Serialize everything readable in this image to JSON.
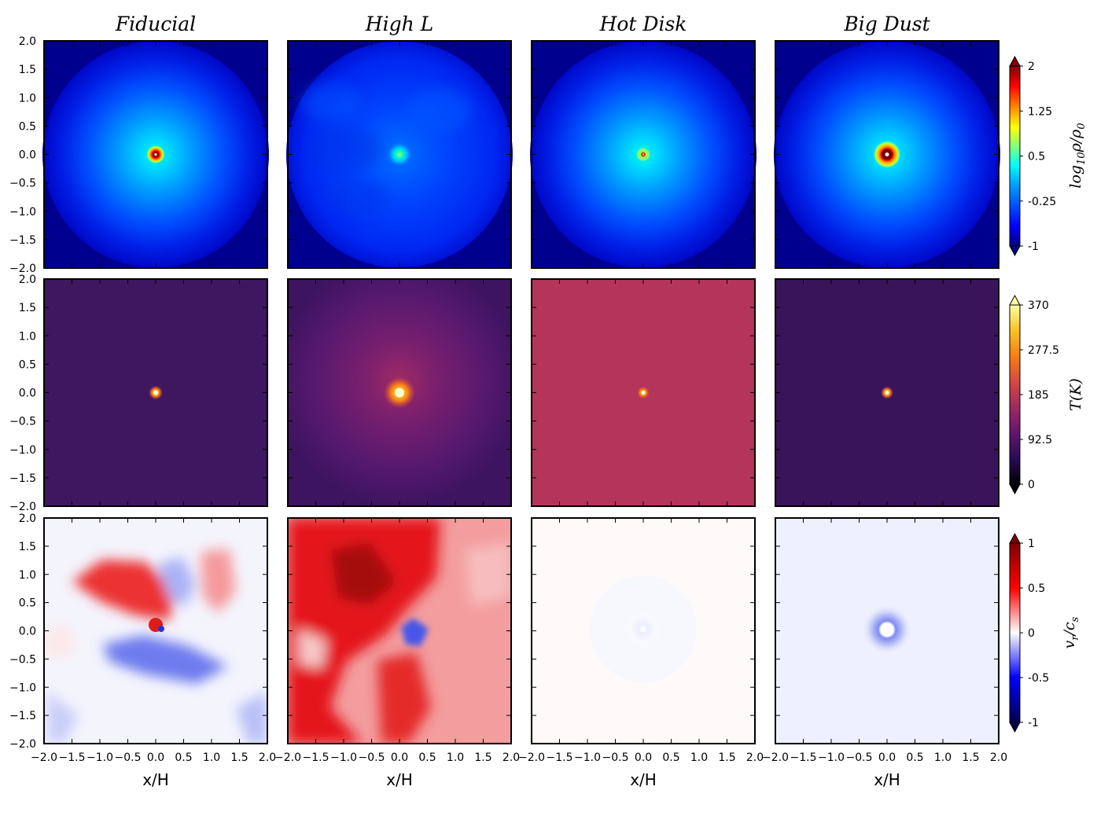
{
  "chart_data": {
    "type": "heatmap",
    "panel_titles": [
      "Fiducial",
      "High L",
      "Hot Disk",
      "Big Dust"
    ],
    "x_label": "x/H",
    "x_range": [
      -2.0,
      2.0
    ],
    "y_range": [
      -2.0,
      2.0
    ],
    "x_tick_labels": [
      "−2.0",
      "−1.5",
      "−1.0",
      "−0.5",
      "0.0",
      "0.5",
      "1.0",
      "1.5",
      "2.0"
    ],
    "y_tick_labels": [
      "2.0",
      "1.5",
      "1.0",
      "0.5",
      "0.0",
      "−0.5",
      "−1.0",
      "−1.5",
      "−2.0"
    ],
    "rows": [
      {
        "quantity": "density",
        "colorbar_label": "log10 rho / rho0",
        "colormap": "jet",
        "colorbar_ticks": [
          "2",
          "1.25",
          "0.5",
          "-0.25",
          "-1"
        ],
        "colorbar_range": [
          -1,
          2
        ],
        "colors": {
          "background": "#00008f",
          "stops": [
            "#00007f",
            "#0000ff",
            "#007fff",
            "#00ffff",
            "#7fff7f",
            "#ffff00",
            "#ff7f00",
            "#ff0000",
            "#7f0000"
          ]
        }
      },
      {
        "quantity": "temperature",
        "colorbar_label": "T(K)",
        "colormap": "inferno",
        "colorbar_ticks": [
          "370",
          "277.5",
          "185",
          "92.5",
          "0"
        ],
        "colorbar_range": [
          0,
          370
        ],
        "colors": {
          "stops": [
            "#000004",
            "#280b54",
            "#65156e",
            "#9f2a63",
            "#d44842",
            "#f57d15",
            "#fac228",
            "#fcffa4"
          ],
          "fiducial": "#3f1760",
          "highl": "#4a1a6c",
          "hotdisk": "#b5345a",
          "bigdust": "#3a145a"
        }
      },
      {
        "quantity": "radial velocity",
        "colorbar_label": "v_r / c_s",
        "colormap": "seismic",
        "colorbar_ticks": [
          "1",
          "0.5",
          "0",
          "-0.5",
          "-1"
        ],
        "colorbar_range": [
          -1,
          1
        ],
        "colors": {
          "stops": [
            "#00004c",
            "#0000ff",
            "#ffffff",
            "#ff0000",
            "#7f0000"
          ],
          "red": "#e8191c",
          "blue": "#3b52e6"
        }
      }
    ]
  }
}
